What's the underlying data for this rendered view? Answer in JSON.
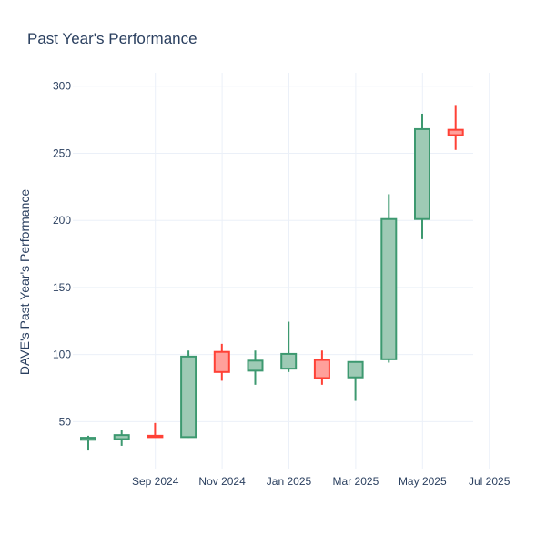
{
  "chart_data": {
    "type": "candlestick",
    "title": "Past Year's Performance",
    "xlabel": "",
    "ylabel": "DAVE's Past Year's Performance",
    "ylim": [
      15,
      310
    ],
    "yticks": [
      50,
      100,
      150,
      200,
      250,
      300
    ],
    "xtick_labels": [
      "Sep 2024",
      "Nov 2024",
      "Jan 2025",
      "Mar 2025",
      "May 2025",
      "Jul 2025"
    ],
    "grid": true,
    "legend": "none",
    "colors": {
      "increasing_line": "#3d9970",
      "increasing_fill": "#9ecab5",
      "decreasing_line": "#ff4136",
      "decreasing_fill": "#ffa09b",
      "grid": "#ebf0f8",
      "text": "#2a3f5f"
    },
    "candles": [
      {
        "month": "2024-08",
        "open": 36.5,
        "high": 39.5,
        "low": 28.5,
        "close": 38.0
      },
      {
        "month": "2024-09",
        "open": 37.0,
        "high": 43.5,
        "low": 32.0,
        "close": 40.0
      },
      {
        "month": "2024-10",
        "open": 39.5,
        "high": 49.0,
        "low": 38.0,
        "close": 38.5
      },
      {
        "month": "2024-11",
        "open": 38.5,
        "high": 103.0,
        "low": 38.0,
        "close": 98.5
      },
      {
        "month": "2024-12",
        "open": 102.0,
        "high": 108.0,
        "low": 80.5,
        "close": 87.0
      },
      {
        "month": "2025-01",
        "open": 88.0,
        "high": 103.0,
        "low": 77.5,
        "close": 95.5
      },
      {
        "month": "2025-02",
        "open": 89.5,
        "high": 124.5,
        "low": 87.0,
        "close": 100.5
      },
      {
        "month": "2025-03",
        "open": 96.0,
        "high": 103.0,
        "low": 77.5,
        "close": 82.5
      },
      {
        "month": "2025-04",
        "open": 83.0,
        "high": 95.0,
        "low": 65.5,
        "close": 94.5
      },
      {
        "month": "2025-05",
        "open": 96.5,
        "high": 219.5,
        "low": 94.0,
        "close": 201.0
      },
      {
        "month": "2025-06",
        "open": 201.0,
        "high": 279.5,
        "low": 186.0,
        "close": 268.0
      },
      {
        "month": "2025-07",
        "open": 267.5,
        "high": 286.0,
        "low": 252.5,
        "close": 263.5
      }
    ]
  }
}
